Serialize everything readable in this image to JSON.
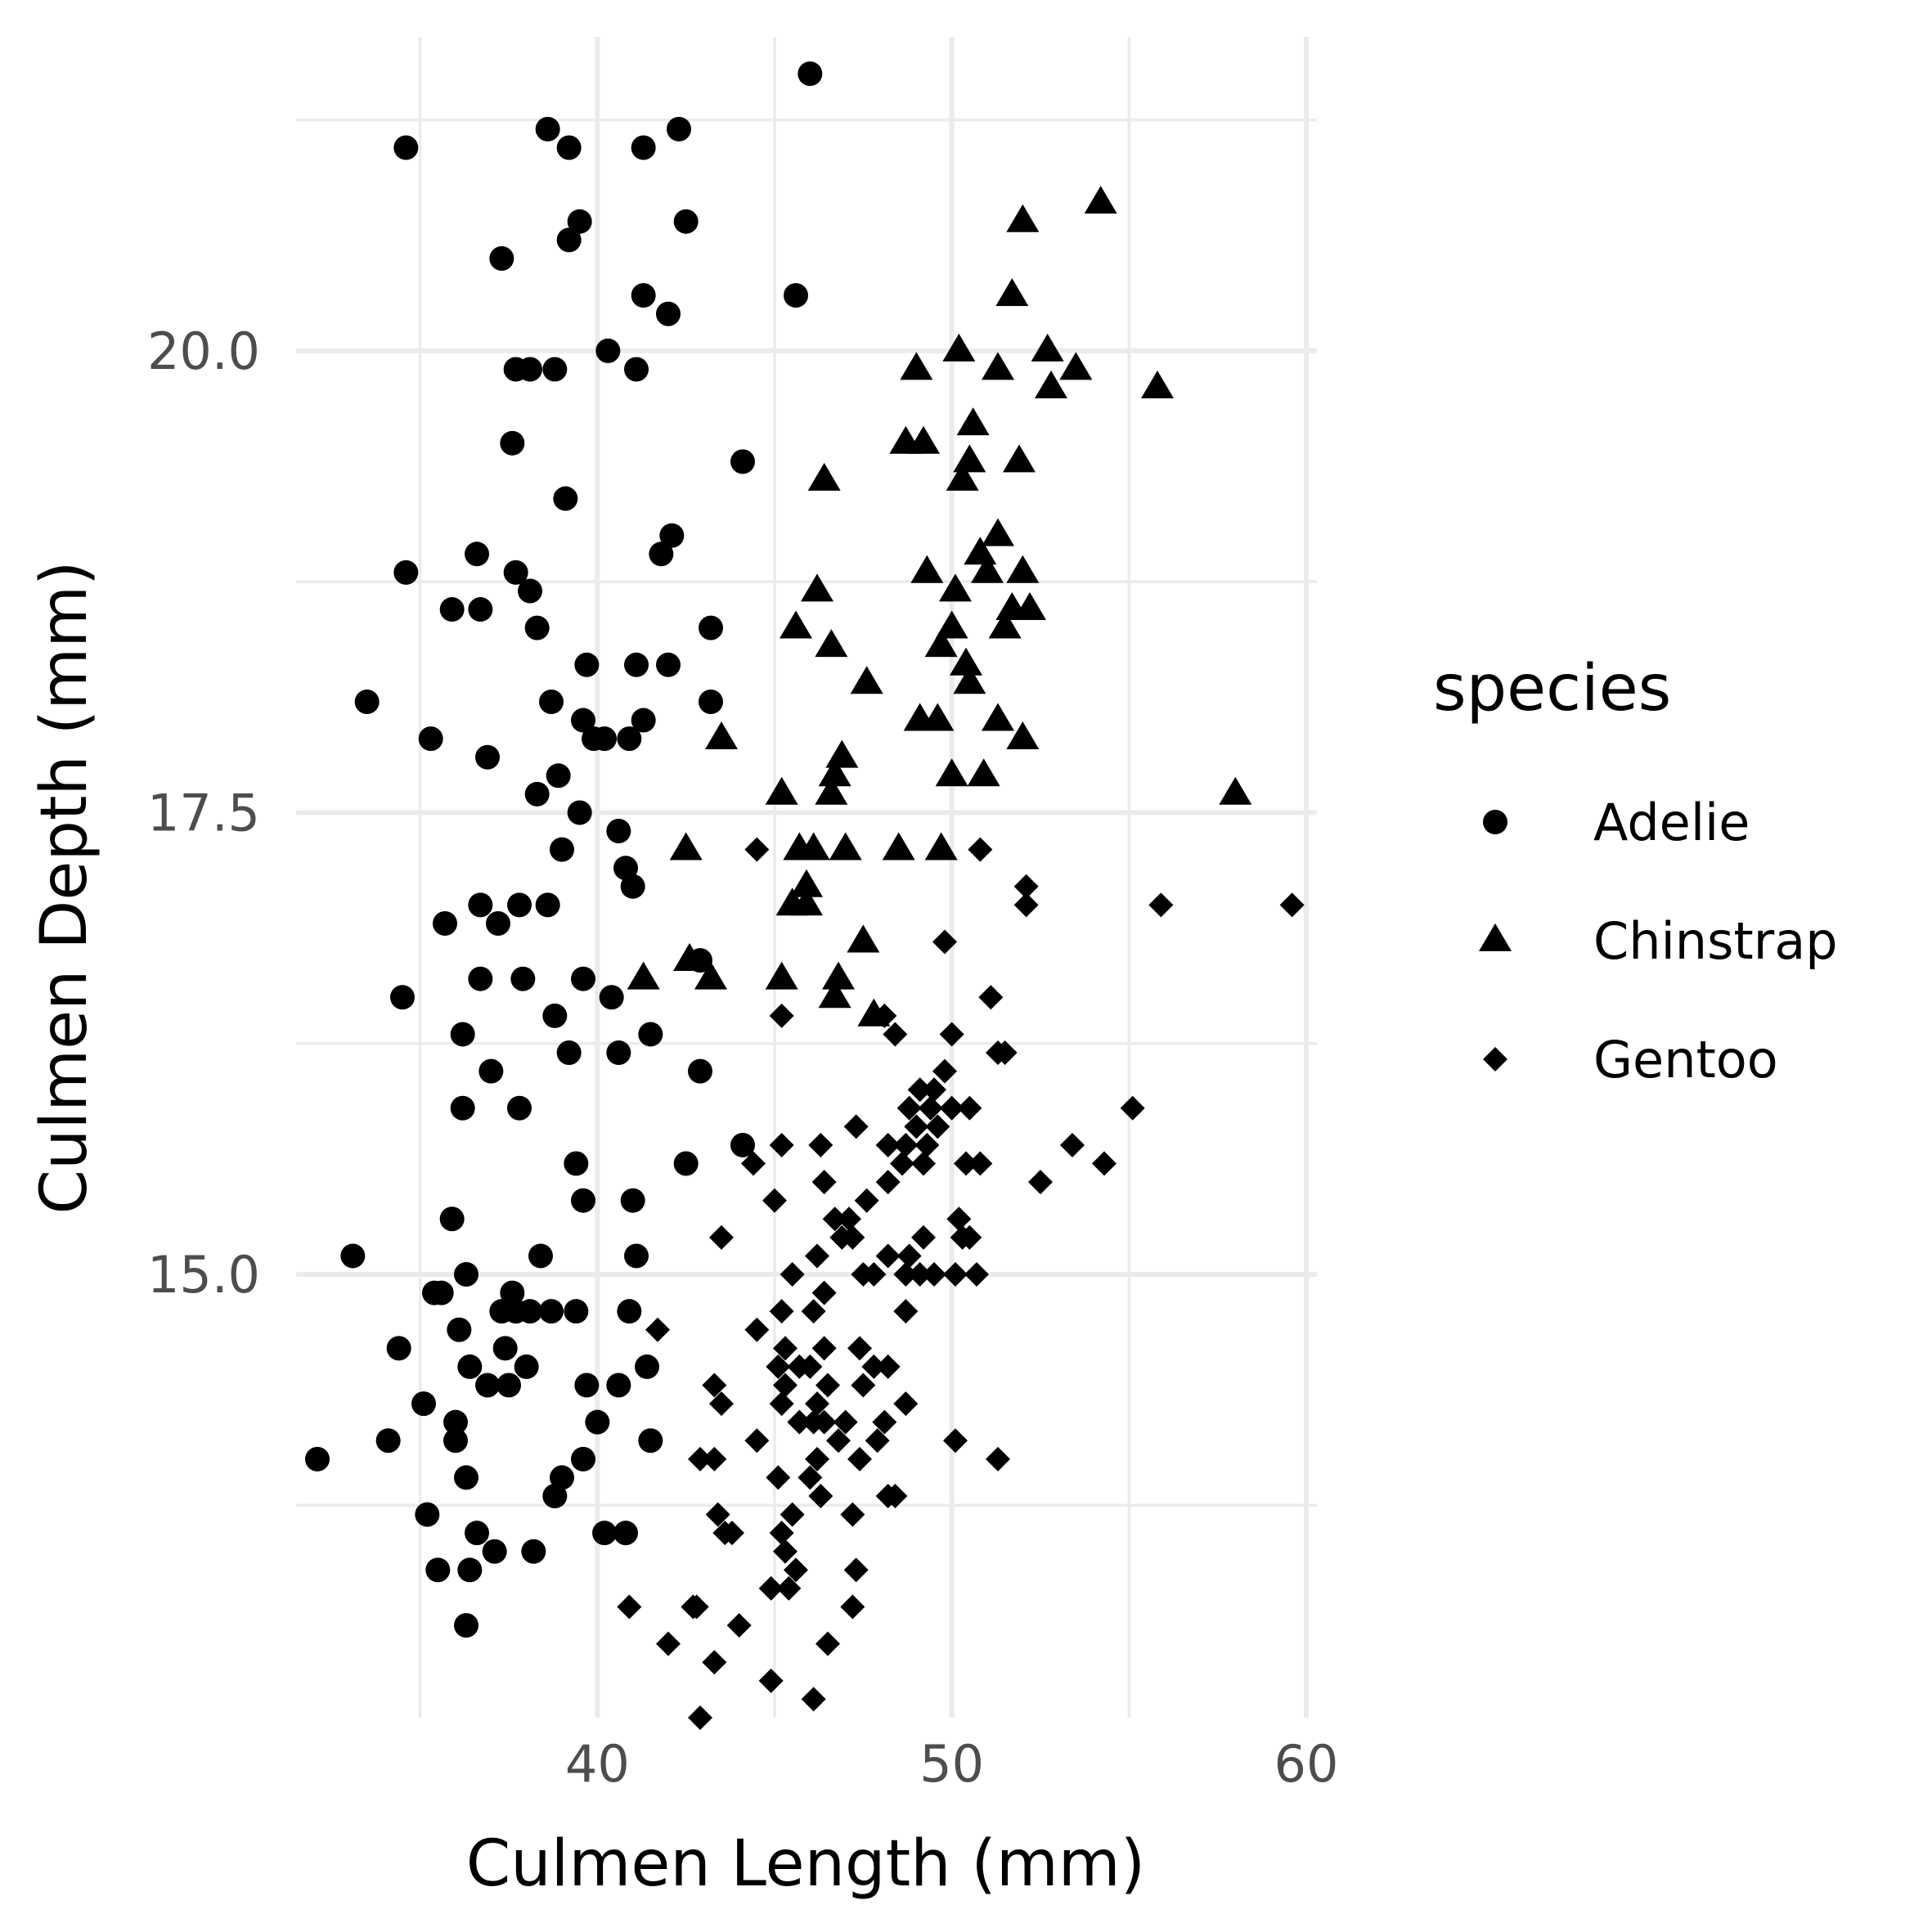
{
  "chart_data": {
    "type": "scatter",
    "title": "",
    "xlabel": "Culmen Length (mm)",
    "ylabel": "Culmen Depth (mm)",
    "xlim": [
      31.5,
      60.3
    ],
    "ylim": [
      12.6,
      21.7
    ],
    "x_ticks": [
      40,
      50,
      60
    ],
    "x_tick_labels": [
      "40",
      "50",
      "60"
    ],
    "x_minor_ticks": [
      35,
      45,
      55
    ],
    "y_ticks": [
      15.0,
      17.5,
      20.0
    ],
    "y_tick_labels": [
      "15.0",
      "17.5",
      "20.0"
    ],
    "y_minor_ticks": [
      13.75,
      16.25,
      18.75,
      21.25
    ],
    "grid": true,
    "legend": {
      "title": "species",
      "position": "right"
    },
    "colors": {
      "points": "#000000",
      "grid": "#ebebeb",
      "tick_text": "#4d4d4d"
    },
    "series": [
      {
        "name": "Adelie",
        "shape": "circle",
        "points": [
          [
            46.0,
            21.5
          ],
          [
            38.6,
            21.2
          ],
          [
            42.3,
            21.2
          ],
          [
            34.6,
            21.1
          ],
          [
            39.2,
            21.1
          ],
          [
            41.3,
            21.1
          ],
          [
            39.5,
            20.7
          ],
          [
            42.5,
            20.7
          ],
          [
            39.2,
            20.6
          ],
          [
            37.3,
            20.5
          ],
          [
            45.6,
            20.3
          ],
          [
            41.3,
            20.3
          ],
          [
            42.0,
            20.2
          ],
          [
            40.3,
            20.0
          ],
          [
            41.1,
            19.9
          ],
          [
            37.7,
            19.9
          ],
          [
            38.1,
            19.9
          ],
          [
            38.8,
            19.9
          ],
          [
            37.6,
            19.5
          ],
          [
            44.1,
            19.4
          ],
          [
            39.1,
            19.2
          ],
          [
            42.1,
            19.0
          ],
          [
            41.8,
            18.9
          ],
          [
            36.6,
            18.9
          ],
          [
            34.6,
            18.8
          ],
          [
            37.7,
            18.8
          ],
          [
            38.1,
            18.7
          ],
          [
            36.7,
            18.6
          ],
          [
            35.9,
            18.6
          ],
          [
            38.3,
            18.5
          ],
          [
            43.2,
            18.5
          ],
          [
            39.7,
            18.3
          ],
          [
            41.1,
            18.3
          ],
          [
            42.0,
            18.3
          ],
          [
            33.5,
            18.1
          ],
          [
            43.2,
            18.1
          ],
          [
            38.7,
            18.1
          ],
          [
            39.6,
            18.0
          ],
          [
            41.3,
            18.0
          ],
          [
            35.3,
            17.9
          ],
          [
            40.2,
            17.9
          ],
          [
            39.9,
            17.9
          ],
          [
            40.9,
            17.9
          ],
          [
            36.9,
            17.8
          ],
          [
            38.9,
            17.7
          ],
          [
            38.3,
            17.6
          ],
          [
            39.5,
            17.5
          ],
          [
            40.6,
            17.4
          ],
          [
            39.0,
            17.3
          ],
          [
            40.8,
            17.2
          ],
          [
            41.0,
            17.1
          ],
          [
            36.7,
            17.0
          ],
          [
            37.8,
            17.0
          ],
          [
            38.6,
            17.0
          ],
          [
            35.7,
            16.9
          ],
          [
            37.2,
            16.9
          ],
          [
            39.6,
            16.6
          ],
          [
            36.7,
            16.6
          ],
          [
            37.9,
            16.6
          ],
          [
            38.8,
            16.4
          ],
          [
            42.9,
            16.7
          ],
          [
            40.4,
            16.5
          ],
          [
            41.5,
            16.3
          ],
          [
            34.5,
            16.5
          ],
          [
            36.2,
            16.3
          ],
          [
            37.0,
            16.1
          ],
          [
            39.2,
            16.2
          ],
          [
            40.6,
            16.2
          ],
          [
            42.9,
            16.1
          ],
          [
            36.2,
            15.9
          ],
          [
            37.8,
            15.9
          ],
          [
            39.4,
            15.6
          ],
          [
            39.6,
            15.4
          ],
          [
            41.1,
            15.1
          ],
          [
            42.5,
            15.6
          ],
          [
            35.9,
            15.3
          ],
          [
            36.3,
            15.0
          ],
          [
            35.6,
            14.9
          ],
          [
            37.3,
            14.8
          ],
          [
            38.7,
            14.8
          ],
          [
            39.4,
            14.8
          ],
          [
            40.9,
            14.8
          ],
          [
            36.1,
            14.7
          ],
          [
            37.4,
            14.6
          ],
          [
            36.9,
            14.4
          ],
          [
            34.1,
            14.1
          ],
          [
            36.4,
            14.5
          ],
          [
            37.7,
            14.8
          ],
          [
            38.1,
            14.8
          ],
          [
            40.6,
            14.4
          ],
          [
            35.4,
            14.9
          ],
          [
            36.0,
            14.2
          ],
          [
            36.3,
            13.9
          ],
          [
            38.0,
            14.5
          ],
          [
            39.6,
            14.0
          ],
          [
            41.4,
            14.5
          ],
          [
            35.2,
            13.7
          ],
          [
            36.4,
            13.4
          ],
          [
            37.1,
            13.5
          ],
          [
            38.2,
            13.5
          ],
          [
            39.0,
            13.9
          ],
          [
            40.0,
            14.2
          ],
          [
            33.1,
            15.1
          ],
          [
            35.1,
            14.3
          ],
          [
            36.6,
            13.6
          ],
          [
            37.6,
            14.9
          ],
          [
            41.0,
            15.4
          ],
          [
            44.1,
            15.7
          ],
          [
            32.1,
            14.0
          ],
          [
            34.4,
            14.6
          ],
          [
            36.0,
            14.1
          ],
          [
            37.5,
            14.4
          ],
          [
            38.4,
            15.1
          ],
          [
            40.2,
            13.6
          ],
          [
            35.5,
            13.4
          ],
          [
            36.3,
            13.1
          ],
          [
            38.8,
            13.8
          ],
          [
            39.7,
            14.4
          ],
          [
            40.8,
            13.6
          ],
          [
            41.5,
            14.1
          ]
        ]
      },
      {
        "name": "Chinstrap",
        "shape": "triangle",
        "points": [
          [
            54.2,
            20.8
          ],
          [
            52.0,
            20.7
          ],
          [
            51.7,
            20.3
          ],
          [
            50.2,
            20.0
          ],
          [
            52.7,
            20.0
          ],
          [
            49.0,
            19.9
          ],
          [
            51.3,
            19.9
          ],
          [
            53.5,
            19.9
          ],
          [
            52.8,
            19.8
          ],
          [
            55.8,
            19.8
          ],
          [
            50.6,
            19.6
          ],
          [
            48.7,
            19.5
          ],
          [
            49.2,
            19.5
          ],
          [
            50.5,
            19.4
          ],
          [
            51.9,
            19.4
          ],
          [
            50.3,
            19.3
          ],
          [
            46.4,
            19.3
          ],
          [
            51.3,
            19.0
          ],
          [
            50.8,
            18.9
          ],
          [
            49.3,
            18.8
          ],
          [
            51.0,
            18.8
          ],
          [
            52.0,
            18.8
          ],
          [
            46.2,
            18.7
          ],
          [
            50.1,
            18.7
          ],
          [
            51.7,
            18.6
          ],
          [
            52.2,
            18.6
          ],
          [
            45.6,
            18.5
          ],
          [
            50.0,
            18.5
          ],
          [
            51.5,
            18.5
          ],
          [
            49.7,
            18.4
          ],
          [
            46.6,
            18.4
          ],
          [
            50.4,
            18.3
          ],
          [
            50.5,
            18.2
          ],
          [
            47.6,
            18.2
          ],
          [
            49.1,
            18.0
          ],
          [
            51.3,
            18.0
          ],
          [
            49.6,
            18.0
          ],
          [
            43.5,
            17.9
          ],
          [
            52.0,
            17.9
          ],
          [
            46.9,
            17.8
          ],
          [
            46.7,
            17.7
          ],
          [
            45.2,
            17.6
          ],
          [
            46.6,
            17.6
          ],
          [
            50.0,
            17.7
          ],
          [
            50.9,
            17.7
          ],
          [
            58.0,
            17.6
          ],
          [
            46.1,
            17.3
          ],
          [
            48.5,
            17.3
          ],
          [
            42.5,
            17.3
          ],
          [
            45.7,
            17.3
          ],
          [
            47.0,
            17.3
          ],
          [
            49.7,
            17.3
          ],
          [
            45.9,
            17.1
          ],
          [
            45.5,
            17.0
          ],
          [
            45.9,
            17.0
          ],
          [
            47.5,
            16.8
          ],
          [
            41.3,
            16.6
          ],
          [
            43.2,
            16.6
          ],
          [
            42.6,
            16.7
          ],
          [
            45.2,
            16.6
          ],
          [
            46.8,
            16.6
          ],
          [
            46.7,
            16.5
          ],
          [
            47.8,
            16.4
          ]
        ]
      },
      {
        "name": "Gentoo",
        "shape": "diamond",
        "points": [
          [
            59.6,
            17.0
          ],
          [
            55.9,
            17.0
          ],
          [
            52.1,
            17.1
          ],
          [
            52.1,
            17.0
          ],
          [
            50.8,
            17.3
          ],
          [
            44.5,
            17.3
          ],
          [
            49.8,
            16.8
          ],
          [
            51.1,
            16.5
          ],
          [
            51.3,
            16.2
          ],
          [
            51.5,
            16.2
          ],
          [
            50.0,
            16.3
          ],
          [
            48.1,
            16.4
          ],
          [
            48.4,
            16.3
          ],
          [
            45.2,
            16.4
          ],
          [
            49.1,
            16.0
          ],
          [
            49.4,
            15.9
          ],
          [
            48.8,
            15.9
          ],
          [
            49.5,
            16.0
          ],
          [
            49.8,
            16.1
          ],
          [
            49.6,
            15.8
          ],
          [
            48.2,
            15.7
          ],
          [
            47.3,
            15.8
          ],
          [
            49.0,
            15.8
          ],
          [
            50.0,
            15.9
          ],
          [
            50.5,
            15.9
          ],
          [
            55.1,
            15.9
          ],
          [
            53.4,
            15.7
          ],
          [
            54.3,
            15.6
          ],
          [
            48.7,
            15.7
          ],
          [
            49.2,
            15.6
          ],
          [
            50.4,
            15.6
          ],
          [
            50.8,
            15.6
          ],
          [
            52.5,
            15.5
          ],
          [
            49.3,
            15.7
          ],
          [
            46.3,
            15.7
          ],
          [
            45.2,
            15.7
          ],
          [
            44.4,
            15.6
          ],
          [
            46.4,
            15.5
          ],
          [
            47.6,
            15.4
          ],
          [
            47.1,
            15.3
          ],
          [
            48.2,
            15.5
          ],
          [
            48.6,
            15.6
          ],
          [
            46.9,
            15.2
          ],
          [
            47.2,
            15.2
          ],
          [
            45.0,
            15.4
          ],
          [
            43.5,
            15.2
          ],
          [
            46.7,
            15.3
          ],
          [
            50.2,
            15.3
          ],
          [
            50.5,
            15.2
          ],
          [
            50.3,
            15.2
          ],
          [
            49.2,
            15.2
          ],
          [
            48.8,
            15.1
          ],
          [
            48.2,
            15.1
          ],
          [
            47.8,
            15.0
          ],
          [
            48.7,
            15.0
          ],
          [
            49.1,
            15.0
          ],
          [
            49.5,
            15.0
          ],
          [
            50.1,
            15.0
          ],
          [
            50.7,
            15.0
          ],
          [
            47.5,
            15.0
          ],
          [
            46.2,
            15.1
          ],
          [
            45.5,
            15.0
          ],
          [
            46.4,
            14.9
          ],
          [
            46.1,
            14.8
          ],
          [
            45.2,
            14.8
          ],
          [
            48.7,
            14.8
          ],
          [
            41.7,
            14.7
          ],
          [
            44.5,
            14.7
          ],
          [
            45.3,
            14.6
          ],
          [
            46.4,
            14.6
          ],
          [
            47.4,
            14.6
          ],
          [
            45.1,
            14.5
          ],
          [
            45.7,
            14.5
          ],
          [
            47.8,
            14.5
          ],
          [
            48.2,
            14.5
          ],
          [
            46.0,
            14.5
          ],
          [
            43.3,
            14.4
          ],
          [
            45.3,
            14.4
          ],
          [
            46.5,
            14.4
          ],
          [
            47.5,
            14.4
          ],
          [
            45.2,
            14.3
          ],
          [
            46.2,
            14.3
          ],
          [
            48.7,
            14.3
          ],
          [
            43.5,
            14.3
          ],
          [
            46.4,
            14.2
          ],
          [
            46.1,
            14.2
          ],
          [
            47.0,
            14.2
          ],
          [
            48.1,
            14.2
          ],
          [
            45.7,
            14.2
          ],
          [
            44.5,
            14.1
          ],
          [
            46.8,
            14.1
          ],
          [
            47.9,
            14.1
          ],
          [
            50.1,
            14.1
          ],
          [
            42.9,
            14.0
          ],
          [
            43.3,
            14.0
          ],
          [
            46.2,
            14.0
          ],
          [
            47.4,
            14.0
          ],
          [
            51.3,
            14.0
          ],
          [
            45.1,
            13.9
          ],
          [
            46.0,
            13.9
          ],
          [
            46.3,
            13.8
          ],
          [
            48.2,
            13.8
          ],
          [
            48.4,
            13.8
          ],
          [
            43.4,
            13.7
          ],
          [
            47.2,
            13.7
          ],
          [
            43.8,
            13.6
          ],
          [
            43.6,
            13.6
          ],
          [
            45.2,
            13.6
          ],
          [
            45.5,
            13.7
          ],
          [
            45.6,
            13.4
          ],
          [
            44.9,
            13.3
          ],
          [
            45.3,
            13.5
          ],
          [
            45.4,
            13.3
          ],
          [
            47.3,
            13.4
          ],
          [
            47.2,
            13.2
          ],
          [
            42.7,
            13.2
          ],
          [
            40.9,
            13.2
          ],
          [
            42.8,
            13.2
          ],
          [
            44.0,
            13.1
          ],
          [
            42.0,
            13.0
          ],
          [
            46.5,
            13.0
          ],
          [
            43.3,
            12.9
          ],
          [
            44.9,
            12.8
          ],
          [
            46.1,
            12.7
          ],
          [
            42.9,
            12.6
          ]
        ]
      }
    ]
  }
}
